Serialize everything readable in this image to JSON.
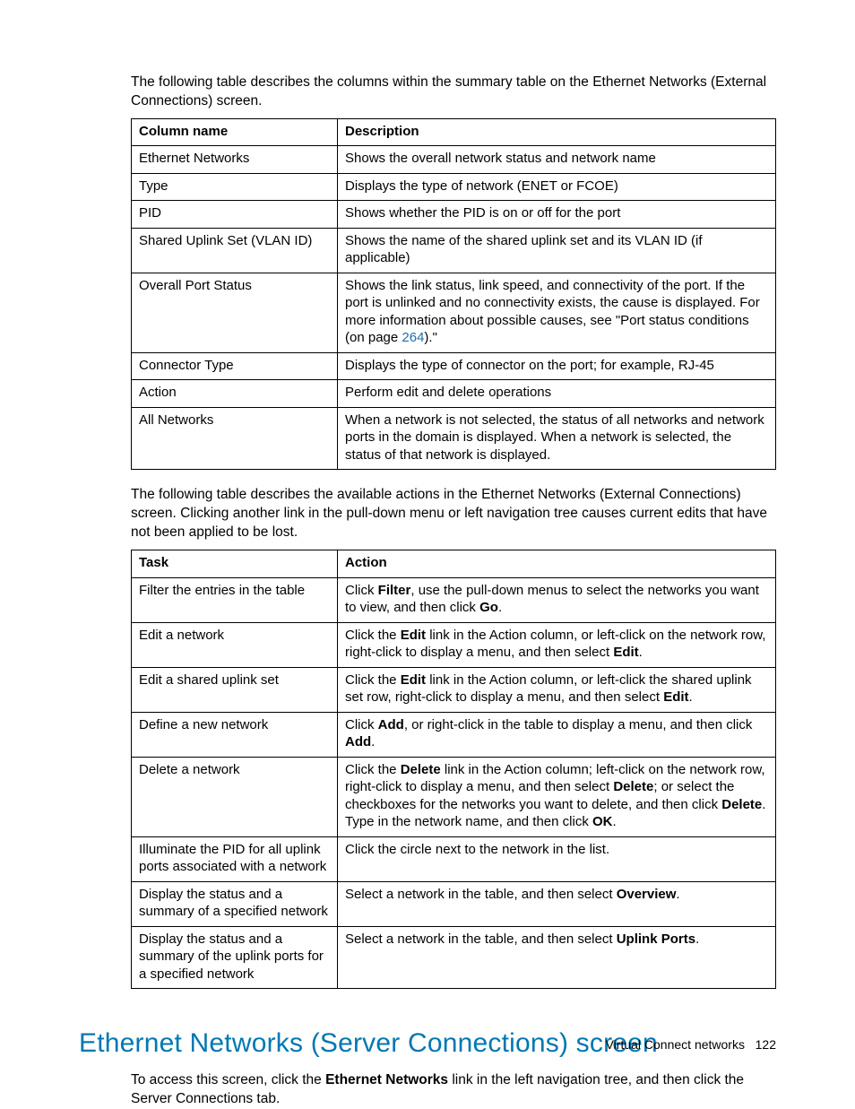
{
  "intro1": "The following table describes the columns within the summary table on the Ethernet Networks (External Connections) screen.",
  "table1": {
    "header": {
      "c1": "Column name",
      "c2": "Description"
    },
    "rows": [
      {
        "c1": "Ethernet Networks",
        "c2_plain": "Shows the overall network status and network name"
      },
      {
        "c1": "Type",
        "c2_plain": "Displays the type of network (ENET or FCOE)"
      },
      {
        "c1": "PID",
        "c2_plain": "Shows whether the PID is on or off for the port"
      },
      {
        "c1": "Shared Uplink Set (VLAN ID)",
        "c2_plain": "Shows the name of the shared uplink set and its VLAN ID (if applicable)"
      },
      {
        "c1": "Overall Port Status",
        "c2_pre": "Shows the link status, link speed, and connectivity of the port. If the port is unlinked and no connectivity exists, the cause is displayed. For more information about possible causes, see \"Port status conditions (on page ",
        "c2_link": "264",
        "c2_post": ").\""
      },
      {
        "c1": "Connector Type",
        "c2_plain": "Displays the type of connector on the port; for example, RJ-45"
      },
      {
        "c1": "Action",
        "c2_plain": "Perform edit and delete operations"
      },
      {
        "c1": "All Networks",
        "c2_plain": "When a network is not selected, the status of all networks and network ports in the domain is displayed. When a network is selected, the status of that network is displayed."
      }
    ]
  },
  "intro2": "The following table describes the available actions in the Ethernet Networks (External Connections) screen. Clicking another link in the pull-down menu or left navigation tree causes current edits that have not been applied to be lost.",
  "table2": {
    "header": {
      "c1": "Task",
      "c2": "Action"
    },
    "rows": [
      {
        "c1": "Filter the entries in the table",
        "parts": [
          {
            "t": "Click "
          },
          {
            "b": "Filter"
          },
          {
            "t": ", use the pull-down menus to select the networks you want to view, and then click "
          },
          {
            "b": "Go"
          },
          {
            "t": "."
          }
        ]
      },
      {
        "c1": "Edit a network",
        "parts": [
          {
            "t": "Click the "
          },
          {
            "b": "Edit"
          },
          {
            "t": " link in the Action column, or left-click on the network row, right-click to display a menu, and then select "
          },
          {
            "b": "Edit"
          },
          {
            "t": "."
          }
        ]
      },
      {
        "c1": "Edit a shared uplink set",
        "parts": [
          {
            "t": "Click the "
          },
          {
            "b": "Edit"
          },
          {
            "t": " link in the Action column, or left-click the shared uplink set row, right-click to display a menu, and then select "
          },
          {
            "b": "Edit"
          },
          {
            "t": "."
          }
        ]
      },
      {
        "c1": "Define a new network",
        "parts": [
          {
            "t": "Click "
          },
          {
            "b": "Add"
          },
          {
            "t": ", or right-click in the table to display a menu, and then click "
          },
          {
            "b": "Add"
          },
          {
            "t": "."
          }
        ]
      },
      {
        "c1": "Delete a network",
        "parts": [
          {
            "t": "Click the "
          },
          {
            "b": "Delete"
          },
          {
            "t": " link in the Action column; left-click on the network row, right-click to display a menu, and then select "
          },
          {
            "b": "Delete"
          },
          {
            "t": "; or select the checkboxes for the networks you want to delete, and then click "
          },
          {
            "b": "Delete"
          },
          {
            "t": ". Type in the network name, and then click "
          },
          {
            "b": "OK"
          },
          {
            "t": "."
          }
        ]
      },
      {
        "c1": "Illuminate the PID for all uplink ports associated with a network",
        "parts": [
          {
            "t": "Click the circle next to the network in the list."
          }
        ]
      },
      {
        "c1": "Display the status and a summary of a specified network",
        "parts": [
          {
            "t": "Select a network in the table, and then select "
          },
          {
            "b": "Overview"
          },
          {
            "t": "."
          }
        ]
      },
      {
        "c1": "Display the status and a summary of the uplink ports for a specified network",
        "parts": [
          {
            "t": "Select a network in the table, and then select "
          },
          {
            "b": "Uplink Ports"
          },
          {
            "t": "."
          }
        ]
      }
    ]
  },
  "section_heading": "Ethernet Networks (Server Connections) screen",
  "section_body": {
    "pre": "To access this screen, click the ",
    "bold": "Ethernet Networks",
    "post": " link in the left navigation tree, and then click the Server Connections tab."
  },
  "footer": {
    "label": "Virtual Connect networks",
    "page": "122"
  },
  "colors": {
    "link": "#1a6fb0",
    "heading": "#0077b3",
    "border": "#000000",
    "text": "#000000",
    "bg": "#ffffff"
  }
}
